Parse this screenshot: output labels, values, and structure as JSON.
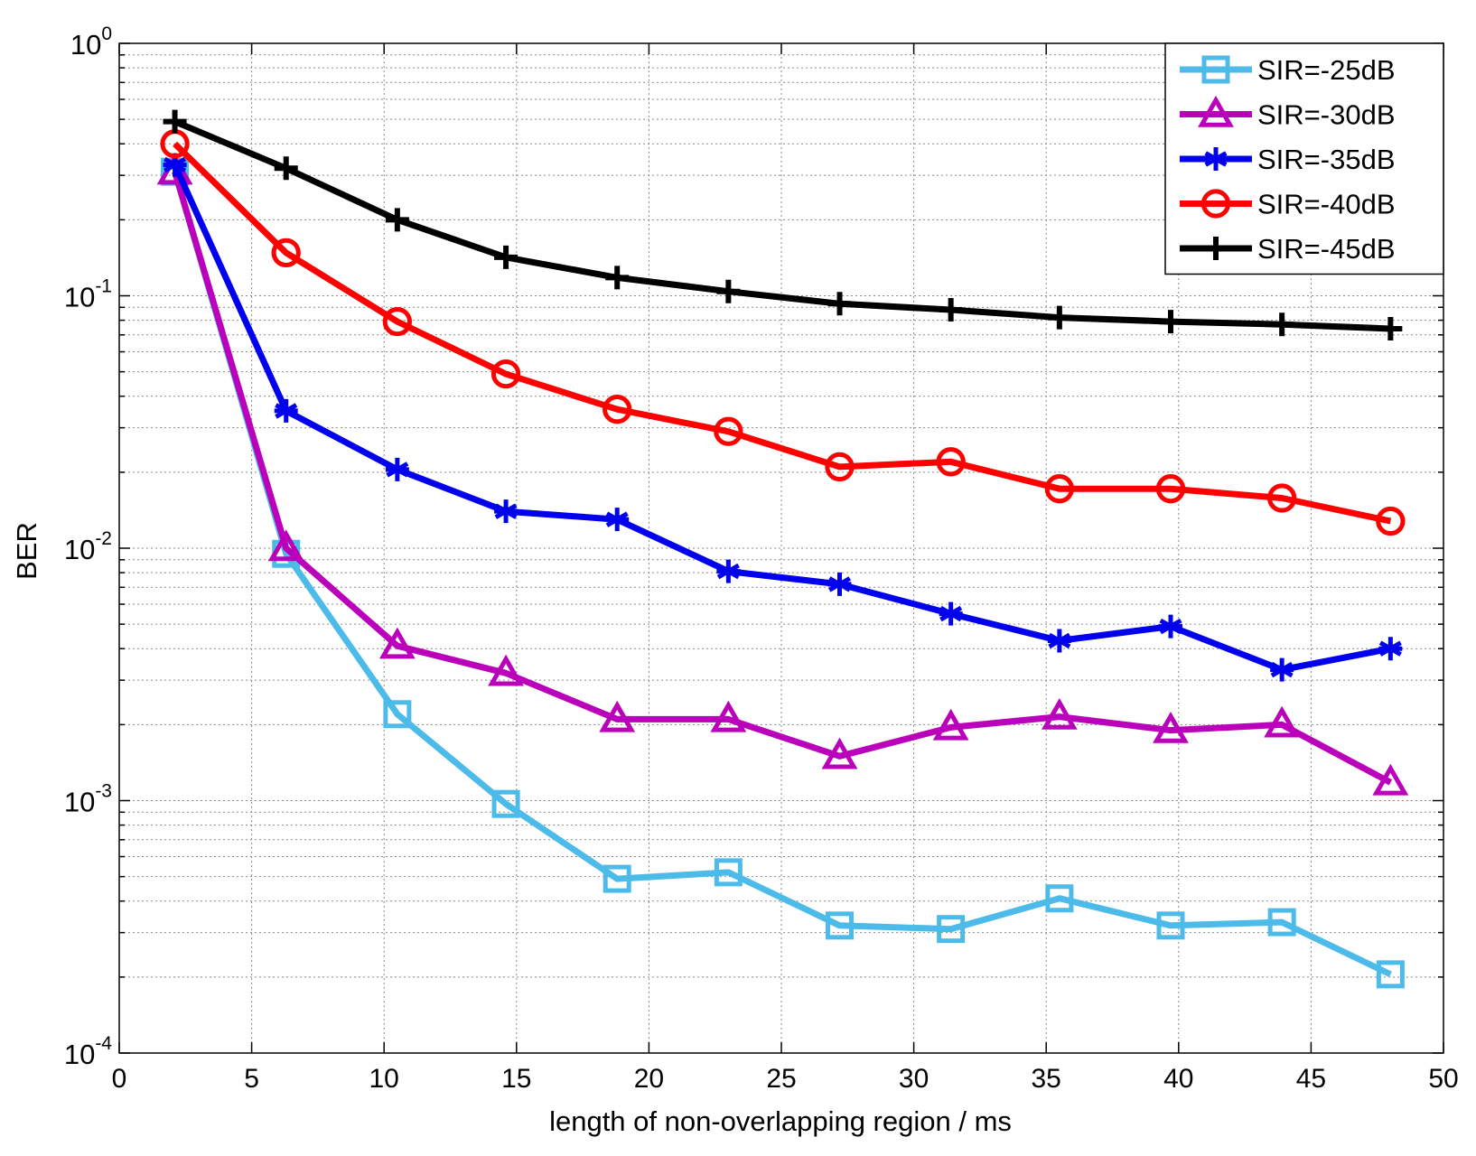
{
  "chart_data": {
    "type": "line",
    "title": "",
    "xlabel": "length of non-overlapping region / ms",
    "ylabel": "BER",
    "xlim": [
      0,
      50
    ],
    "ylim": [
      0.0001,
      1
    ],
    "yscale": "log",
    "grid": true,
    "legend_position": "top-right",
    "x_ticks": [
      "0",
      "5",
      "10",
      "15",
      "20",
      "25",
      "30",
      "35",
      "40",
      "45",
      "50"
    ],
    "y_ticks": [
      {
        "base": "10",
        "exp": "0",
        "value": 1
      },
      {
        "base": "10",
        "exp": "-1",
        "value": 0.1
      },
      {
        "base": "10",
        "exp": "-2",
        "value": 0.01
      },
      {
        "base": "10",
        "exp": "-3",
        "value": 0.001
      },
      {
        "base": "10",
        "exp": "-4",
        "value": 0.0001
      }
    ],
    "x": [
      2.1,
      6.3,
      10.5,
      14.6,
      18.8,
      23.0,
      27.2,
      31.4,
      35.5,
      39.7,
      43.9,
      48.0
    ],
    "series": [
      {
        "name": "SIR=-25dB",
        "color": "#4dbbe9",
        "marker": "square",
        "values": [
          0.31,
          0.0095,
          0.0022,
          0.00097,
          0.00049,
          0.00052,
          0.00032,
          0.00031,
          0.00041,
          0.00032,
          0.00033,
          0.000205
        ]
      },
      {
        "name": "SIR=-30dB",
        "color": "#bb00bb",
        "marker": "triangle",
        "values": [
          0.31,
          0.01,
          0.0041,
          0.0032,
          0.0021,
          0.0021,
          0.0015,
          0.00195,
          0.00215,
          0.0019,
          0.002,
          0.00118
        ]
      },
      {
        "name": "SIR=-35dB",
        "color": "#0000ee",
        "marker": "star",
        "values": [
          0.33,
          0.035,
          0.0205,
          0.014,
          0.013,
          0.0081,
          0.0072,
          0.0055,
          0.0043,
          0.0049,
          0.0033,
          0.004
        ]
      },
      {
        "name": "SIR=-40dB",
        "color": "#ff0000",
        "marker": "circle",
        "values": [
          0.4,
          0.148,
          0.079,
          0.049,
          0.0355,
          0.029,
          0.021,
          0.022,
          0.0172,
          0.0172,
          0.0158,
          0.0128
        ]
      },
      {
        "name": "SIR=-45dB",
        "color": "#000000",
        "marker": "plus",
        "values": [
          0.49,
          0.32,
          0.2,
          0.142,
          0.118,
          0.104,
          0.093,
          0.088,
          0.082,
          0.079,
          0.077,
          0.074
        ]
      }
    ]
  }
}
